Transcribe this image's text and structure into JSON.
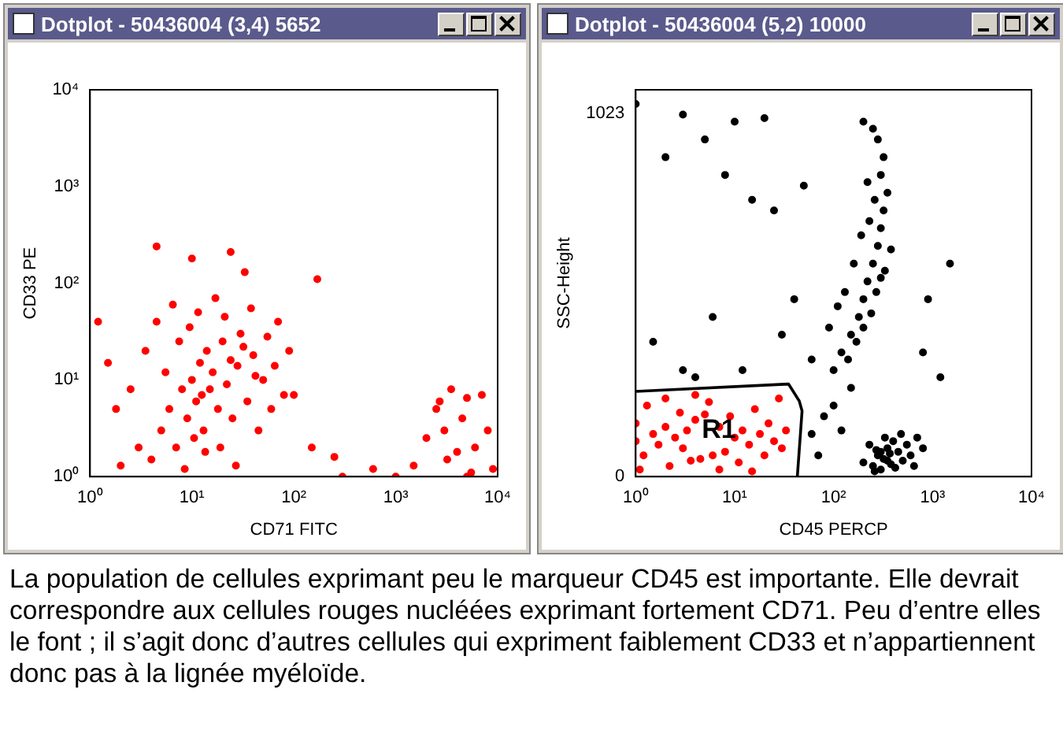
{
  "chart_data": [
    {
      "type": "scatter",
      "title": "Dotplot - 50436004 (3,4) 5652",
      "xlabel": "CD71 FITC",
      "ylabel": "CD33 PE",
      "log": "xy",
      "marker": "circle",
      "xlim": [
        1,
        10000
      ],
      "ylim": [
        1,
        10000
      ],
      "xticks": [
        {
          "value": 1,
          "label": "10⁰"
        },
        {
          "value": 10,
          "label": "10¹"
        },
        {
          "value": 100,
          "label": "10²"
        },
        {
          "value": 1000,
          "label": "10³"
        },
        {
          "value": 10000,
          "label": "10⁴"
        }
      ],
      "yticks": [
        {
          "value": 1,
          "label": "10⁰"
        },
        {
          "value": 10,
          "label": "10¹"
        },
        {
          "value": 100,
          "label": "10²"
        },
        {
          "value": 1000,
          "label": "10³"
        },
        {
          "value": 10000,
          "label": "10⁴"
        }
      ],
      "series": [
        {
          "color": "#ff0000",
          "x": [
            3,
            4,
            5,
            6,
            7,
            8,
            9,
            10,
            11,
            12,
            13,
            14,
            15,
            16,
            18,
            20,
            22,
            25,
            28,
            30,
            35,
            40,
            45,
            50,
            60,
            70,
            2.5,
            3.5,
            4.5,
            5.5,
            6.5,
            7.5,
            8.5,
            9.5,
            10.5,
            11.5,
            12.5,
            13.5,
            17,
            19,
            21,
            24,
            27,
            32,
            38,
            42,
            55,
            65,
            80,
            90,
            1.2,
            1.5,
            1.8,
            2,
            4.5,
            10,
            24,
            33,
            170,
            150,
            250,
            600,
            100,
            1500,
            2000,
            2500,
            3000,
            3500,
            4000,
            4500,
            5000,
            6000,
            7000,
            8000,
            9000,
            3200,
            5500,
            2700,
            300,
            1000,
            5000
          ],
          "values": [
            2,
            1.5,
            3,
            5,
            2,
            8,
            4,
            10,
            6,
            15,
            3,
            20,
            8,
            12,
            5,
            25,
            9,
            4,
            14,
            30,
            6,
            18,
            3,
            10,
            5,
            40,
            8,
            20,
            40,
            12,
            60,
            25,
            1.2,
            35,
            2.5,
            50,
            7,
            1.8,
            70,
            2,
            45,
            16,
            1.3,
            22,
            55,
            11,
            28,
            14,
            7,
            20,
            40,
            15,
            5,
            1.3,
            240,
            180,
            210,
            130,
            110,
            2,
            1.6,
            1.2,
            7,
            1.3,
            2.5,
            5,
            3,
            8,
            1.8,
            4,
            6.5,
            2,
            7,
            3,
            1.2,
            1.5,
            1.1,
            6,
            1,
            1,
            1
          ]
        }
      ],
      "annotations": [
        "La population de cellules exprimant peu le marqueur CD45 est importante. Elle devrait correspondre aux cellules rouges nucléées exprimant fortement CD71. Peu d’entre elles le font ; il s’agit donc d’autres cellules qui expriment faiblement CD33 et n’appartiennent donc pas à la lignée myéloïde."
      ]
    },
    {
      "type": "scatter",
      "title": "Dotplot - 50436004 (5,2) 10000",
      "xlabel": "CD45 PERCP",
      "ylabel": "SSC-Height",
      "log": "x",
      "marker": "circle",
      "xlim": [
        1,
        10000
      ],
      "ylim": [
        0,
        1090
      ],
      "xticks": [
        {
          "value": 1,
          "label": "10⁰"
        },
        {
          "value": 10,
          "label": "10¹"
        },
        {
          "value": 100,
          "label": "10²"
        },
        {
          "value": 1000,
          "label": "10³"
        },
        {
          "value": 10000,
          "label": "10⁴"
        }
      ],
      "yticks": [
        0,
        1023
      ],
      "series": [
        {
          "color": "#ff0000",
          "x": [
            1,
            1,
            1.2,
            1.3,
            1.5,
            1.7,
            2,
            2.2,
            2.5,
            2.8,
            3,
            3.3,
            3.6,
            4,
            4.5,
            5,
            5.5,
            6,
            7,
            8,
            9,
            10,
            11,
            12,
            14,
            16,
            18,
            20,
            22,
            25,
            28,
            30,
            33,
            2,
            1.1,
            7,
            15,
            4
          ],
          "values": [
            100,
            150,
            60,
            200,
            120,
            90,
            140,
            30,
            110,
            180,
            80,
            130,
            45,
            160,
            50,
            175,
            210,
            60,
            140,
            70,
            170,
            110,
            40,
            130,
            90,
            190,
            120,
            60,
            150,
            100,
            220,
            80,
            130,
            220,
            20,
            20,
            15,
            230
          ]
        },
        {
          "color": "#000000",
          "x": [
            200,
            250,
            280,
            300,
            320,
            350,
            380,
            400,
            450,
            500,
            550,
            600,
            700,
            230,
            260,
            330,
            420,
            480,
            650,
            800,
            300,
            350,
            270,
            370,
            100,
            120,
            150,
            180,
            200,
            220,
            250,
            280,
            300,
            320,
            350,
            300,
            320,
            280,
            250,
            200,
            90,
            110,
            130,
            160,
            190,
            230,
            260,
            150,
            100,
            80,
            120,
            70,
            60,
            140,
            170,
            200,
            240,
            270,
            330,
            380,
            220,
            300,
            1.5,
            2,
            3,
            5,
            8,
            10,
            15,
            20,
            25,
            30,
            12,
            6,
            40,
            50,
            60,
            1500,
            900,
            1200,
            800,
            1,
            3,
            4
          ],
          "values": [
            40,
            30,
            60,
            20,
            50,
            80,
            35,
            100,
            70,
            45,
            90,
            60,
            110,
            90,
            15,
            110,
            25,
            120,
            30,
            80,
            70,
            45,
            75,
            65,
            300,
            350,
            400,
            450,
            500,
            550,
            600,
            650,
            700,
            750,
            800,
            850,
            900,
            950,
            980,
            1000,
            420,
            480,
            520,
            600,
            680,
            720,
            780,
            250,
            200,
            170,
            130,
            60,
            120,
            330,
            380,
            420,
            460,
            520,
            580,
            640,
            830,
            560,
            380,
            900,
            300,
            950,
            850,
            1000,
            780,
            1010,
            750,
            400,
            300,
            450,
            500,
            820,
            330,
            600,
            500,
            280,
            350,
            1050,
            1020,
            280
          ]
        },
        {
          "type": "line",
          "name": "R1",
          "marker": "none",
          "color": "#000000",
          "x": [
            1,
            35,
            45,
            48,
            43
          ],
          "values": [
            240,
            261,
            213,
            185,
            0
          ]
        }
      ]
    }
  ]
}
